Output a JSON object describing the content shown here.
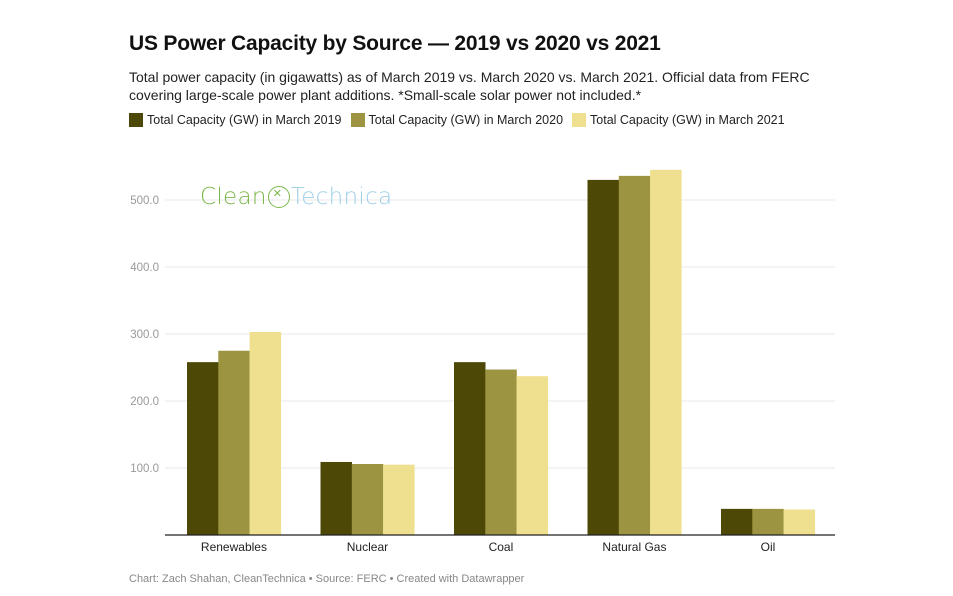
{
  "header": {
    "title": "US Power Capacity by Source — 2019 vs 2020 vs 2021",
    "subtitle": "Total power capacity (in gigawatts) as of March 2019 vs. March 2020 vs. March 2021. Official data from FERC covering large-scale power plant additions. *Small-scale solar power not included.*"
  },
  "logo": {
    "part1": "Clean",
    "part2": "Technica",
    "icon": "plug-icon"
  },
  "footer": {
    "text": "Chart: Zach Shahan, CleanTechnica • Source: FERC • Created with Datawrapper"
  },
  "colors": {
    "series_2019": "#4d4806",
    "series_2020": "#9d9442",
    "series_2021": "#efe08f",
    "grid": "#e8e8e8",
    "axis": "#222222"
  },
  "chart_data": {
    "type": "bar",
    "title": "US Power Capacity by Source — 2019 vs 2020 vs 2021",
    "xlabel": "",
    "ylabel": "",
    "categories": [
      "Renewables",
      "Nuclear",
      "Coal",
      "Natural Gas",
      "Oil"
    ],
    "series": [
      {
        "name": "Total Capacity (GW) in March 2019",
        "color": "#4d4806",
        "values": [
          258,
          109,
          258,
          530,
          39
        ]
      },
      {
        "name": "Total Capacity (GW) in March 2020",
        "color": "#9d9442",
        "values": [
          275,
          106,
          247,
          536,
          39
        ]
      },
      {
        "name": "Total Capacity (GW) in March 2021",
        "color": "#efe08f",
        "values": [
          303,
          105,
          237,
          545,
          38
        ]
      }
    ],
    "ylim": [
      0,
      545
    ],
    "yticks": [
      100,
      200,
      300,
      400,
      500
    ],
    "ytick_labels": [
      "100.0",
      "200.0",
      "300.0",
      "400.0",
      "500.0"
    ],
    "grid": true,
    "legend_position": "top-left"
  }
}
